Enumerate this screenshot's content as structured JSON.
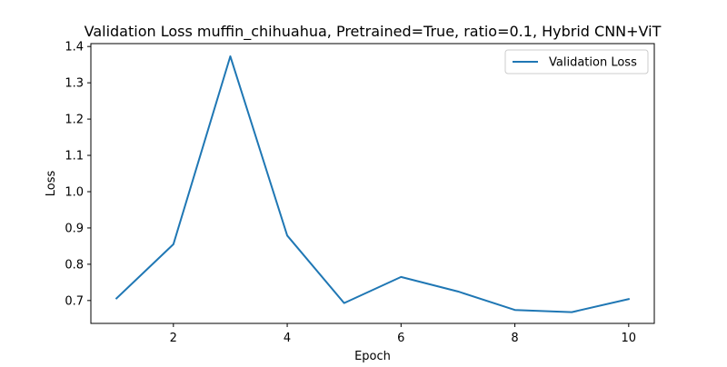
{
  "chart_data": {
    "type": "line",
    "title": "Validation Loss muffin_chihuahua, Pretrained=True, ratio=0.1, Hybrid CNN+ViT",
    "xlabel": "Epoch",
    "ylabel": "Loss",
    "xlim": [
      0.55,
      10.45
    ],
    "ylim": [
      0.637,
      1.408
    ],
    "xticks": [
      2,
      4,
      6,
      8,
      10
    ],
    "xtick_labels": [
      "2",
      "4",
      "6",
      "8",
      "10"
    ],
    "yticks": [
      0.7,
      0.8,
      0.9,
      1.0,
      1.1,
      1.2,
      1.3,
      1.4
    ],
    "ytick_labels": [
      "0.7",
      "0.8",
      "0.9",
      "1.0",
      "1.1",
      "1.2",
      "1.3",
      "1.4"
    ],
    "grid": false,
    "legend_position": "top-right",
    "series": [
      {
        "name": "Validation Loss",
        "color": "#1f77b4",
        "x": [
          1,
          2,
          3,
          4,
          5,
          6,
          7,
          8,
          9,
          10
        ],
        "values": [
          0.706,
          0.855,
          1.373,
          0.879,
          0.693,
          0.765,
          0.725,
          0.674,
          0.668,
          0.704
        ]
      }
    ]
  }
}
